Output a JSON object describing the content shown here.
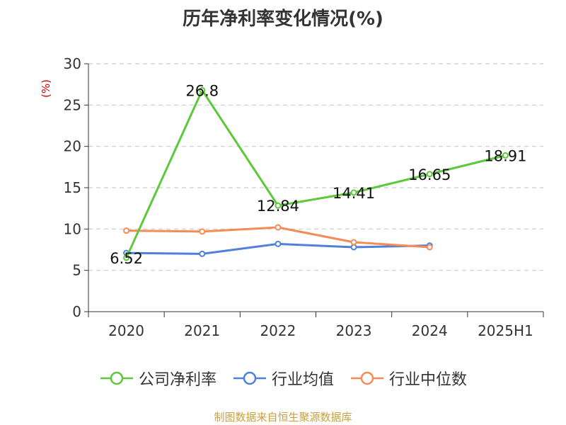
{
  "chart_data": {
    "type": "line",
    "title": "历年净利率变化情况(%)",
    "ylabel": "(%)",
    "categories": [
      "2020",
      "2021",
      "2022",
      "2023",
      "2024",
      "2025H1"
    ],
    "ylim": [
      0,
      30
    ],
    "yticks": [
      0,
      5,
      10,
      15,
      20,
      25,
      30
    ],
    "grid": true,
    "legend_position": "bottom",
    "series": [
      {
        "name": "公司净利率",
        "color": "#5cc83a",
        "values": [
          6.52,
          26.8,
          12.84,
          14.41,
          16.65,
          18.91
        ],
        "labels": [
          "6.52",
          "26.8",
          "12.84",
          "14.41",
          "16.65",
          "18.91"
        ]
      },
      {
        "name": "行业均值",
        "color": "#4f80db",
        "values": [
          7.1,
          7.0,
          8.2,
          7.8,
          8.0,
          null
        ]
      },
      {
        "name": "行业中位数",
        "color": "#f58b57",
        "values": [
          9.8,
          9.7,
          10.2,
          8.4,
          7.8,
          null
        ]
      }
    ]
  },
  "source_text": "制图数据来自恒生聚源数据库"
}
